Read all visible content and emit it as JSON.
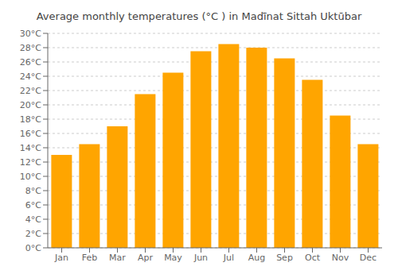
{
  "chart_data": {
    "type": "bar",
    "title": "Average monthly temperatures (°C ) in Madī̇nat Sittah Uktūbar",
    "categories": [
      "Jan",
      "Feb",
      "Mar",
      "Apr",
      "May",
      "Jun",
      "Jul",
      "Aug",
      "Sep",
      "Oct",
      "Nov",
      "Dec"
    ],
    "values": [
      13,
      14.5,
      17,
      21.5,
      24.5,
      27.5,
      28.5,
      28,
      26.5,
      23.5,
      18.5,
      14.5
    ],
    "color": "#FFA500",
    "ylim": [
      0,
      30
    ],
    "yticks": [
      {
        "value": 0,
        "label": "0°C"
      },
      {
        "value": 2,
        "label": "2°C"
      },
      {
        "value": 4,
        "label": "4°C"
      },
      {
        "value": 6,
        "label": "6°C"
      },
      {
        "value": 8,
        "label": "8°C"
      },
      {
        "value": 10,
        "label": "10°C"
      },
      {
        "value": 12,
        "label": "12°C"
      },
      {
        "value": 14,
        "label": "14°C"
      },
      {
        "value": 16,
        "label": "16°C"
      },
      {
        "value": 18,
        "label": "18°C"
      },
      {
        "value": 20,
        "label": "20°C"
      },
      {
        "value": 22,
        "label": "22°C"
      },
      {
        "value": 24,
        "label": "24°C"
      },
      {
        "value": 26,
        "label": "26°C"
      },
      {
        "value": 28,
        "label": "28°C"
      },
      {
        "value": 30,
        "label": "30°C"
      }
    ],
    "grid": true
  }
}
